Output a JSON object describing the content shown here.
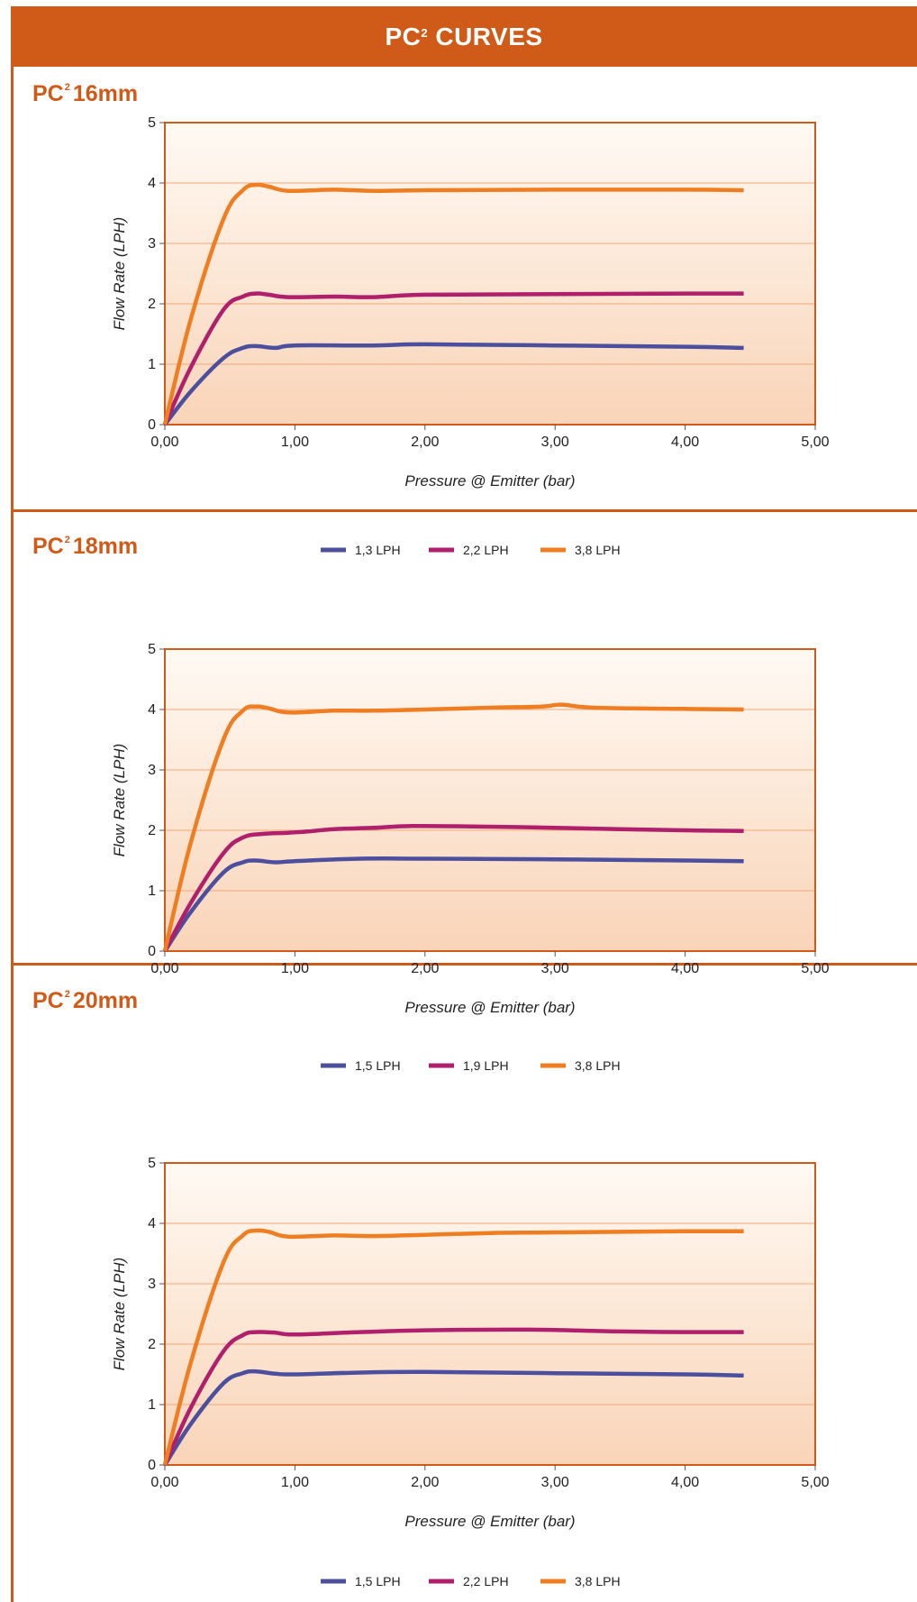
{
  "page": {
    "title_main": "PC",
    "title_sup": "2",
    "title_rest": "CURVES"
  },
  "colors": {
    "accent": "#d05a17",
    "series_blue": "#4b4f9e",
    "series_magenta": "#b01f6c",
    "series_orange": "#ef7d22"
  },
  "chart_data": [
    {
      "type": "line",
      "title_main": "PC",
      "title_sup": "2",
      "title_rest": "16mm",
      "xlabel": "Pressure @ Emitter (bar)",
      "ylabel": "Flow Rate (LPH)",
      "xlim": [
        0,
        5
      ],
      "ylim": [
        0,
        5
      ],
      "x_ticks": [
        "0,00",
        "1,00",
        "2,00",
        "3,00",
        "4,00",
        "5,00"
      ],
      "y_ticks": [
        "0",
        "1",
        "2",
        "3",
        "4",
        "5"
      ],
      "grid": true,
      "legend": "bottom-center",
      "series": [
        {
          "name": "1,3 LPH",
          "color": "#4b4f9e",
          "points": [
            [
              0,
              0
            ],
            [
              0.2,
              0.55
            ],
            [
              0.45,
              1.1
            ],
            [
              0.6,
              1.27
            ],
            [
              0.7,
              1.3
            ],
            [
              0.85,
              1.27
            ],
            [
              1.0,
              1.31
            ],
            [
              1.6,
              1.31
            ],
            [
              2.0,
              1.33
            ],
            [
              3.0,
              1.31
            ],
            [
              4.0,
              1.29
            ],
            [
              4.45,
              1.27
            ]
          ]
        },
        {
          "name": "2,2 LPH",
          "color": "#b01f6c",
          "points": [
            [
              0,
              0
            ],
            [
              0.2,
              0.95
            ],
            [
              0.45,
              1.9
            ],
            [
              0.6,
              2.12
            ],
            [
              0.7,
              2.17
            ],
            [
              0.8,
              2.15
            ],
            [
              0.95,
              2.11
            ],
            [
              1.3,
              2.12
            ],
            [
              1.6,
              2.11
            ],
            [
              2.0,
              2.15
            ],
            [
              3.0,
              2.16
            ],
            [
              4.0,
              2.17
            ],
            [
              4.45,
              2.17
            ]
          ]
        },
        {
          "name": "3,8 LPH",
          "color": "#ef7d22",
          "points": [
            [
              0,
              0
            ],
            [
              0.2,
              1.75
            ],
            [
              0.45,
              3.4
            ],
            [
              0.6,
              3.88
            ],
            [
              0.7,
              3.97
            ],
            [
              0.8,
              3.94
            ],
            [
              0.95,
              3.87
            ],
            [
              1.3,
              3.89
            ],
            [
              1.6,
              3.87
            ],
            [
              2.0,
              3.88
            ],
            [
              3.0,
              3.89
            ],
            [
              4.0,
              3.89
            ],
            [
              4.45,
              3.88
            ]
          ]
        }
      ]
    },
    {
      "type": "line",
      "title_main": "PC",
      "title_sup": "2",
      "title_rest": "18mm",
      "xlabel": "Pressure @ Emitter (bar)",
      "ylabel": "Flow Rate (LPH)",
      "xlim": [
        0,
        5
      ],
      "ylim": [
        0,
        5
      ],
      "x_ticks": [
        "0,00",
        "1,00",
        "2,00",
        "3,00",
        "4,00",
        "5,00"
      ],
      "y_ticks": [
        "0",
        "1",
        "2",
        "3",
        "4",
        "5"
      ],
      "grid": true,
      "legend": "bottom-center",
      "series": [
        {
          "name": "1,5 LPH",
          "color": "#4b4f9e",
          "points": [
            [
              0,
              0
            ],
            [
              0.2,
              0.65
            ],
            [
              0.45,
              1.3
            ],
            [
              0.6,
              1.47
            ],
            [
              0.7,
              1.5
            ],
            [
              0.85,
              1.47
            ],
            [
              1.0,
              1.49
            ],
            [
              1.5,
              1.53
            ],
            [
              2.0,
              1.53
            ],
            [
              3.0,
              1.52
            ],
            [
              4.0,
              1.5
            ],
            [
              4.45,
              1.49
            ]
          ]
        },
        {
          "name": "1,9 LPH",
          "color": "#b01f6c",
          "points": [
            [
              0,
              0
            ],
            [
              0.2,
              0.8
            ],
            [
              0.45,
              1.62
            ],
            [
              0.6,
              1.88
            ],
            [
              0.75,
              1.94
            ],
            [
              0.95,
              1.96
            ],
            [
              1.1,
              1.98
            ],
            [
              1.3,
              2.02
            ],
            [
              1.6,
              2.04
            ],
            [
              1.9,
              2.07
            ],
            [
              2.5,
              2.06
            ],
            [
              3.0,
              2.04
            ],
            [
              3.5,
              2.02
            ],
            [
              4.0,
              2.0
            ],
            [
              4.45,
              1.99
            ]
          ]
        },
        {
          "name": "3,8 LPH",
          "color": "#ef7d22",
          "points": [
            [
              0,
              0
            ],
            [
              0.2,
              1.8
            ],
            [
              0.45,
              3.5
            ],
            [
              0.6,
              3.98
            ],
            [
              0.7,
              4.05
            ],
            [
              0.8,
              4.02
            ],
            [
              0.95,
              3.95
            ],
            [
              1.3,
              3.98
            ],
            [
              1.6,
              3.98
            ],
            [
              2.0,
              4.0
            ],
            [
              2.5,
              4.03
            ],
            [
              2.9,
              4.05
            ],
            [
              3.05,
              4.08
            ],
            [
              3.3,
              4.03
            ],
            [
              4.0,
              4.01
            ],
            [
              4.45,
              4.0
            ]
          ]
        }
      ]
    },
    {
      "type": "line",
      "title_main": "PC",
      "title_sup": "2",
      "title_rest": "20mm",
      "xlabel": "Pressure @ Emitter (bar)",
      "ylabel": "Flow Rate (LPH)",
      "xlim": [
        0,
        5
      ],
      "ylim": [
        0,
        5
      ],
      "x_ticks": [
        "0,00",
        "1,00",
        "2,00",
        "3,00",
        "4,00",
        "5,00"
      ],
      "y_ticks": [
        "0",
        "1",
        "2",
        "3",
        "4",
        "5"
      ],
      "grid": true,
      "legend": "bottom-center",
      "series": [
        {
          "name": "1,5 LPH",
          "color": "#4b4f9e",
          "points": [
            [
              0,
              0
            ],
            [
              0.2,
              0.68
            ],
            [
              0.45,
              1.35
            ],
            [
              0.6,
              1.52
            ],
            [
              0.7,
              1.55
            ],
            [
              0.85,
              1.51
            ],
            [
              1.0,
              1.5
            ],
            [
              1.5,
              1.53
            ],
            [
              2.0,
              1.54
            ],
            [
              3.0,
              1.52
            ],
            [
              4.0,
              1.5
            ],
            [
              4.45,
              1.48
            ]
          ]
        },
        {
          "name": "2,2 LPH",
          "color": "#b01f6c",
          "points": [
            [
              0,
              0
            ],
            [
              0.2,
              0.95
            ],
            [
              0.45,
              1.88
            ],
            [
              0.6,
              2.15
            ],
            [
              0.7,
              2.2
            ],
            [
              0.85,
              2.19
            ],
            [
              1.0,
              2.16
            ],
            [
              1.5,
              2.2
            ],
            [
              2.0,
              2.23
            ],
            [
              2.8,
              2.24
            ],
            [
              3.5,
              2.21
            ],
            [
              4.0,
              2.2
            ],
            [
              4.45,
              2.2
            ]
          ]
        },
        {
          "name": "3,8 LPH",
          "color": "#ef7d22",
          "points": [
            [
              0,
              0
            ],
            [
              0.2,
              1.7
            ],
            [
              0.45,
              3.35
            ],
            [
              0.6,
              3.8
            ],
            [
              0.7,
              3.88
            ],
            [
              0.8,
              3.86
            ],
            [
              0.95,
              3.78
            ],
            [
              1.3,
              3.8
            ],
            [
              1.6,
              3.79
            ],
            [
              2.0,
              3.81
            ],
            [
              2.5,
              3.84
            ],
            [
              3.0,
              3.85
            ],
            [
              4.0,
              3.87
            ],
            [
              4.45,
              3.87
            ]
          ]
        }
      ]
    }
  ]
}
